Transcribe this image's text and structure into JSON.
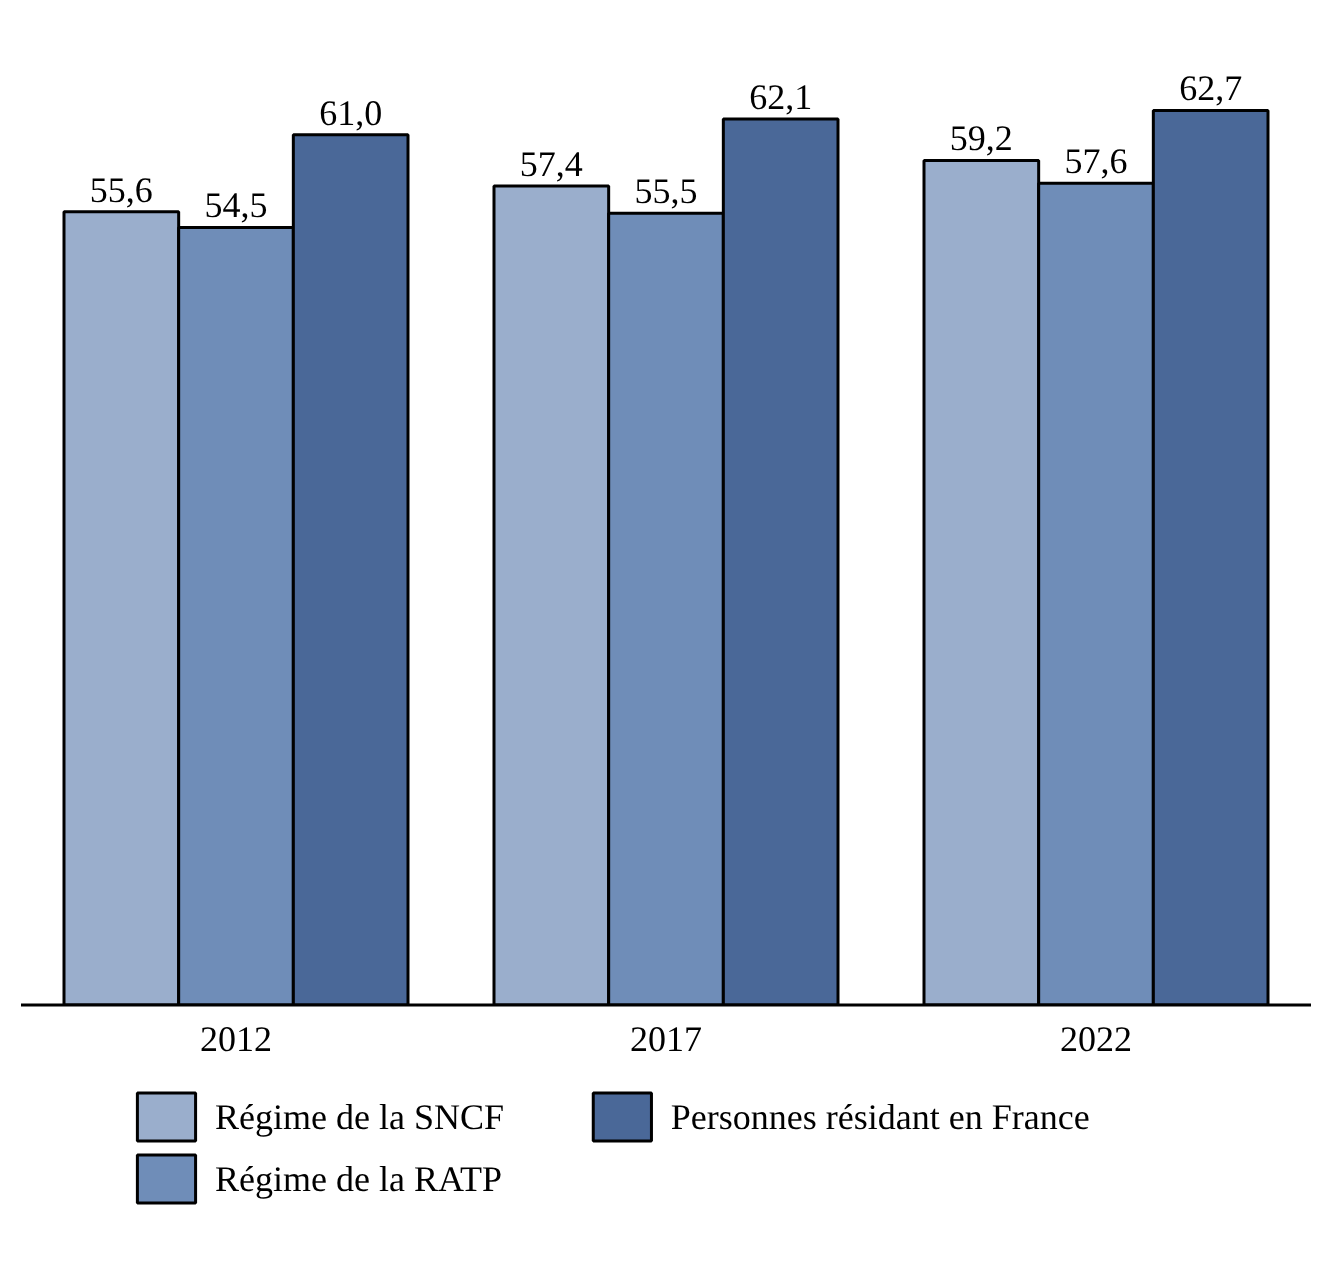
{
  "chart_data": {
    "type": "bar",
    "categories": [
      "2012",
      "2017",
      "2022"
    ],
    "series": [
      {
        "name": "Régime de la SNCF",
        "color": "#9aaecc",
        "values": [
          55.6,
          57.4,
          59.2
        ],
        "value_labels": [
          "55,6",
          "57,4",
          "59,2"
        ]
      },
      {
        "name": "Régime de la RATP",
        "color": "#6f8db8",
        "values": [
          54.5,
          55.5,
          57.6
        ],
        "value_labels": [
          "54,5",
          "55,5",
          "57,6"
        ]
      },
      {
        "name": "Personnes résidant en France",
        "color": "#4a6898",
        "values": [
          61.0,
          62.1,
          62.7
        ],
        "value_labels": [
          "61,0",
          "62,1",
          "62,7"
        ]
      }
    ],
    "legend": "bottom",
    "tick_labels": "x"
  }
}
